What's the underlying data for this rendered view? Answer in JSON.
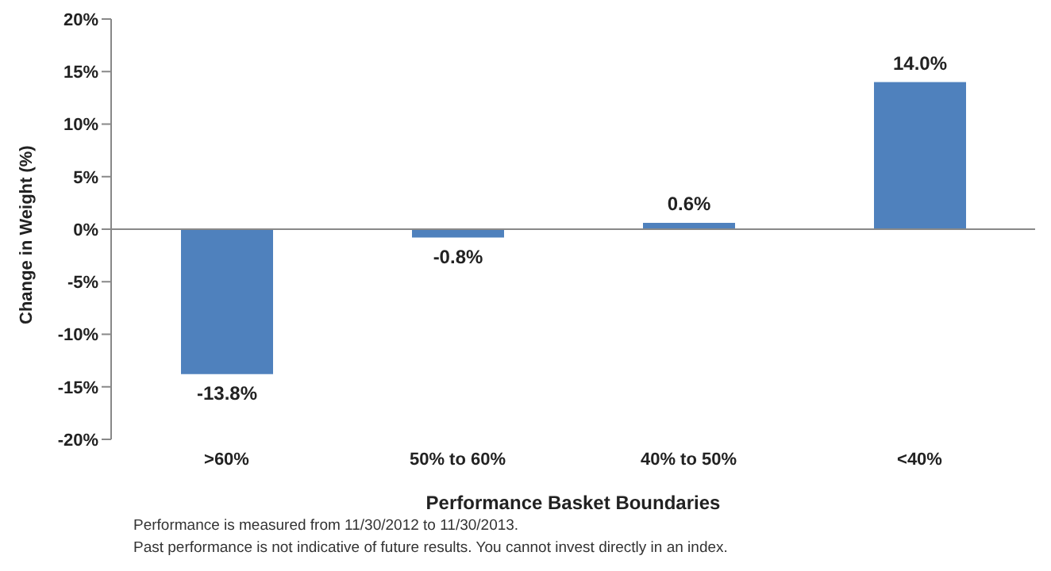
{
  "chart_data": {
    "type": "bar",
    "xlabel": "Performance Basket Boundaries",
    "ylabel": "Change in Weight (%)",
    "categories": [
      ">60%",
      "50% to 60%",
      "40% to 50%",
      "<40%"
    ],
    "values": [
      -13.8,
      -0.8,
      0.6,
      14.0
    ],
    "value_labels": [
      "-13.8%",
      "-0.8%",
      "0.6%",
      "14.0%"
    ],
    "color": "#4f81bd",
    "ylim": [
      -20,
      20
    ],
    "yticks": [
      {
        "value": -20,
        "label": "-20%"
      },
      {
        "value": -15,
        "label": "-15%"
      },
      {
        "value": -10,
        "label": "-10%"
      },
      {
        "value": -5,
        "label": "-5%"
      },
      {
        "value": 0,
        "label": "0%"
      },
      {
        "value": 5,
        "label": "5%"
      },
      {
        "value": 10,
        "label": "10%"
      },
      {
        "value": 15,
        "label": "15%"
      },
      {
        "value": 20,
        "label": "20%"
      }
    ],
    "annotations": [
      "Performance is measured from 11/30/2012 to 11/30/2013.",
      "Past performance is not indicative of future results. You cannot invest directly in an index."
    ]
  }
}
